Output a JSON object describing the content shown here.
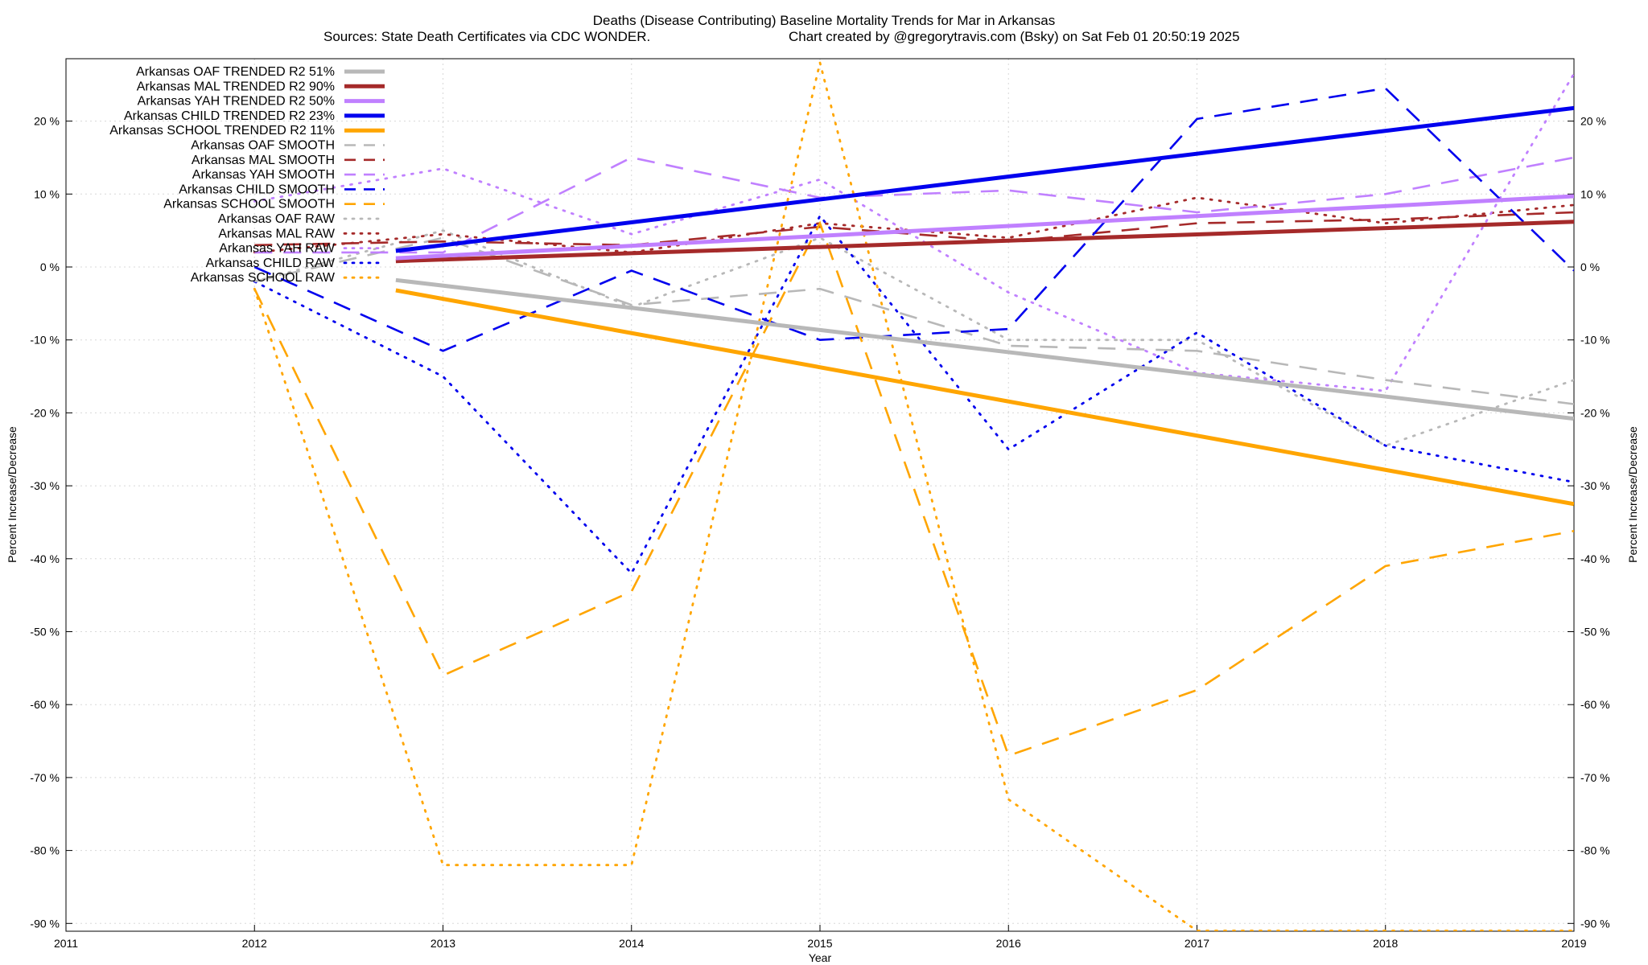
{
  "chart_data": {
    "type": "line",
    "title": "Deaths (Disease Contributing)  Baseline Mortality Trends for Mar in Arkansas",
    "subtitle_left": "Sources: State Death Certificates via CDC WONDER.",
    "subtitle_right": "Chart created by @gregorytravis.com (Bsky) on Sat Feb 01 20:50:19 2025",
    "xlabel": "Year",
    "ylabel": "Percent Increase/Decrease",
    "xlim": [
      2011,
      2019
    ],
    "ylim": [
      -91,
      28
    ],
    "x_ticks": [
      "2011",
      "2012",
      "2013",
      "2014",
      "2015",
      "2016",
      "2017",
      "2018",
      "2019"
    ],
    "y_ticks_left": [
      "20 %",
      "10 %",
      "0 %",
      "-10 %",
      "-20 %",
      "-30 %",
      "-40 %",
      "-50 %",
      "-60 %",
      "-70 %",
      "-80 %",
      "-90 %"
    ],
    "y_ticks_right": [
      "20 %",
      "10 %",
      "0 %",
      "-10 %",
      "-20 %",
      "-30 %",
      "-40 %",
      "-50 %",
      "-60 %",
      "-70 %",
      "-80 %",
      "-90 %"
    ],
    "grid": true,
    "legend_position": "top-left",
    "colors": {
      "oaf": "#b8b8b8",
      "mal": "#a52a2a",
      "yah": "#c080ff",
      "child": "#0000ee",
      "school": "#ffa500"
    },
    "series": [
      {
        "name": "Arkansas OAF TRENDED R2  51%",
        "group": "oaf",
        "style": "trend",
        "x": [
          2012.75,
          2019
        ],
        "values": [
          -1.8,
          -20.8
        ]
      },
      {
        "name": "Arkansas MAL TRENDED R2  90%",
        "group": "mal",
        "style": "trend",
        "x": [
          2012.75,
          2019
        ],
        "values": [
          0.8,
          6.2
        ]
      },
      {
        "name": "Arkansas YAH TRENDED R2  50%",
        "group": "yah",
        "style": "trend",
        "x": [
          2012.75,
          2019
        ],
        "values": [
          1.2,
          9.7
        ]
      },
      {
        "name": "Arkansas CHILD TRENDED R2  23%",
        "group": "child",
        "style": "trend",
        "x": [
          2012.75,
          2019
        ],
        "values": [
          2.2,
          21.8
        ]
      },
      {
        "name": "Arkansas SCHOOL TRENDED R2  11%",
        "group": "school",
        "style": "trend",
        "x": [
          2012.75,
          2019
        ],
        "values": [
          -3.2,
          -32.5
        ]
      },
      {
        "name": "Arkansas OAF SMOOTH",
        "group": "oaf",
        "style": "smooth",
        "x": [
          2012,
          2013,
          2014,
          2015,
          2016,
          2017,
          2018,
          2019
        ],
        "values": [
          -2,
          4,
          -5.2,
          -3,
          -10.8,
          -11.5,
          -15.5,
          -18.8
        ]
      },
      {
        "name": "Arkansas MAL SMOOTH",
        "group": "mal",
        "style": "smooth",
        "x": [
          2012,
          2013,
          2014,
          2015,
          2016,
          2017,
          2018,
          2019
        ],
        "values": [
          3,
          3.5,
          3,
          5.5,
          3.5,
          6,
          6.5,
          7.5
        ]
      },
      {
        "name": "Arkansas YAH SMOOTH",
        "group": "yah",
        "style": "smooth",
        "x": [
          2012,
          2013,
          2014,
          2015,
          2016,
          2017,
          2018,
          2019
        ],
        "values": [
          2,
          2,
          15,
          9.5,
          10.5,
          7.5,
          10,
          15
        ]
      },
      {
        "name": "Arkansas CHILD SMOOTH",
        "group": "child",
        "style": "smooth",
        "x": [
          2012,
          2013,
          2014,
          2015,
          2016,
          2017,
          2018,
          2019
        ],
        "values": [
          0,
          -11.5,
          -0.5,
          -10,
          -8.5,
          20.3,
          24.5,
          -0.5
        ]
      },
      {
        "name": "Arkansas SCHOOL SMOOTH",
        "group": "school",
        "style": "smooth",
        "x": [
          2012,
          2013,
          2014,
          2015,
          2016,
          2017,
          2018,
          2019
        ],
        "values": [
          -3,
          -56,
          -44.5,
          6,
          -67,
          -58,
          -41,
          -36.2
        ]
      },
      {
        "name": "Arkansas OAF RAW",
        "group": "oaf",
        "style": "raw",
        "x": [
          2012,
          2013,
          2014,
          2015,
          2016,
          2017,
          2018,
          2019
        ],
        "values": [
          -2,
          5,
          -5.5,
          4,
          -10,
          -10,
          -24.5,
          -15.5
        ]
      },
      {
        "name": "Arkansas MAL RAW",
        "group": "mal",
        "style": "raw",
        "x": [
          2012,
          2013,
          2014,
          2015,
          2016,
          2017,
          2018,
          2019
        ],
        "values": [
          2,
          4.5,
          2,
          6,
          4,
          9.5,
          6,
          8.5
        ]
      },
      {
        "name": "Arkansas YAH RAW",
        "group": "yah",
        "style": "raw",
        "x": [
          2012,
          2013,
          2014,
          2015,
          2016,
          2017,
          2018,
          2019
        ],
        "values": [
          9,
          13.5,
          4.5,
          12,
          -3.5,
          -14.5,
          -17,
          26.5
        ]
      },
      {
        "name": "Arkansas CHILD RAW",
        "group": "child",
        "style": "raw",
        "x": [
          2012,
          2013,
          2014,
          2015,
          2016,
          2017,
          2018,
          2019
        ],
        "values": [
          -2,
          -15,
          -42,
          7,
          -25,
          -9,
          -24.5,
          -29.5
        ]
      },
      {
        "name": "Arkansas SCHOOL RAW",
        "group": "school",
        "style": "raw",
        "x": [
          2012,
          2013,
          2014,
          2015,
          2016,
          2017,
          2018,
          2019
        ],
        "values": [
          -3,
          -82,
          -82,
          28,
          -73,
          -91,
          -91,
          -91
        ]
      }
    ]
  }
}
